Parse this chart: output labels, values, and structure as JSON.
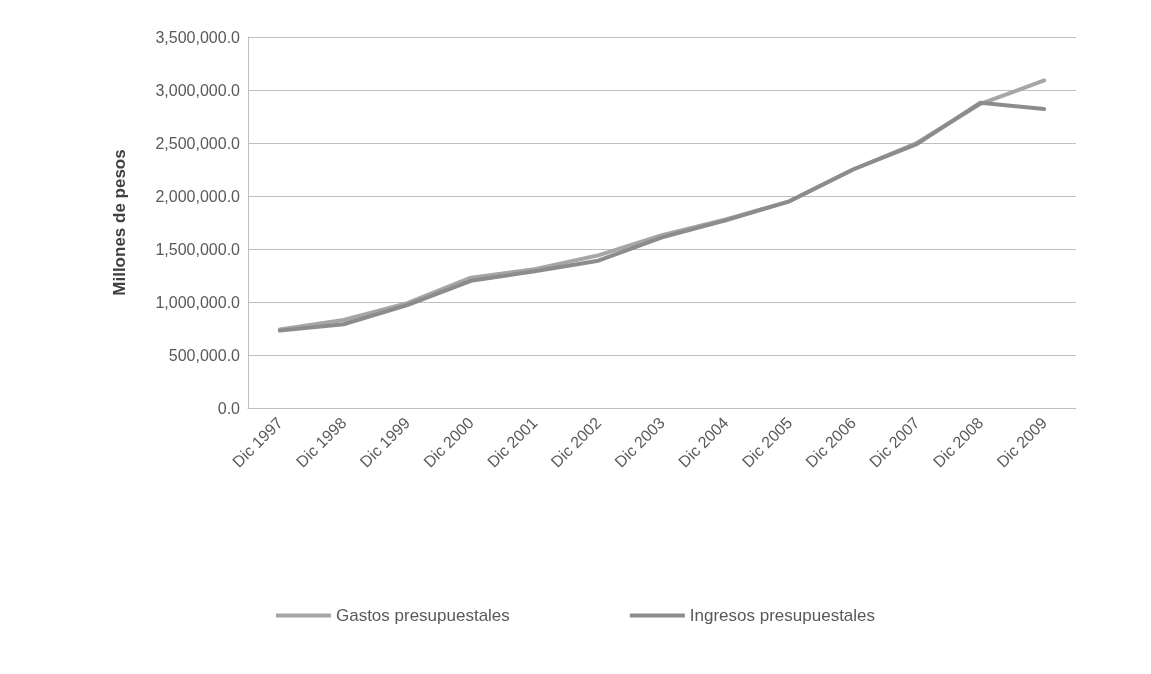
{
  "chart_data": {
    "type": "line",
    "ylabel": "Millones de pesos",
    "categories": [
      "Dic 1997",
      "Dic 1998",
      "Dic 1999",
      "Dic 2000",
      "Dic 2001",
      "Dic 2002",
      "Dic 2003",
      "Dic 2004",
      "Dic 2005",
      "Dic 2006",
      "Dic 2007",
      "Dic 2008",
      "Dic 2009"
    ],
    "series": [
      {
        "name": "Gastos presupuestales",
        "color": "#a6a6a6",
        "values": [
          740000,
          830000,
          990000,
          1230000,
          1310000,
          1440000,
          1630000,
          1780000,
          1950000,
          2250000,
          2500000,
          2870000,
          3090000
        ]
      },
      {
        "name": "Ingresos presupuestales",
        "color": "#8c8c8c",
        "values": [
          730000,
          790000,
          970000,
          1200000,
          1290000,
          1390000,
          1610000,
          1770000,
          1950000,
          2250000,
          2490000,
          2880000,
          2820000
        ]
      }
    ],
    "ylim": [
      0,
      3500000
    ],
    "yticks": [
      {
        "value": 0,
        "label": "0.0"
      },
      {
        "value": 500000,
        "label": "500,000.0"
      },
      {
        "value": 1000000,
        "label": "1,000,000.0"
      },
      {
        "value": 1500000,
        "label": "1,500,000.0"
      },
      {
        "value": 2000000,
        "label": "2,000,000.0"
      },
      {
        "value": 2500000,
        "label": "2,500,000.0"
      },
      {
        "value": 3000000,
        "label": "3,000,000.0"
      },
      {
        "value": 3500000,
        "label": "3,500,000.0"
      }
    ],
    "grid": "y",
    "legend": "bottom",
    "marker": "none",
    "line_style": "solid"
  }
}
